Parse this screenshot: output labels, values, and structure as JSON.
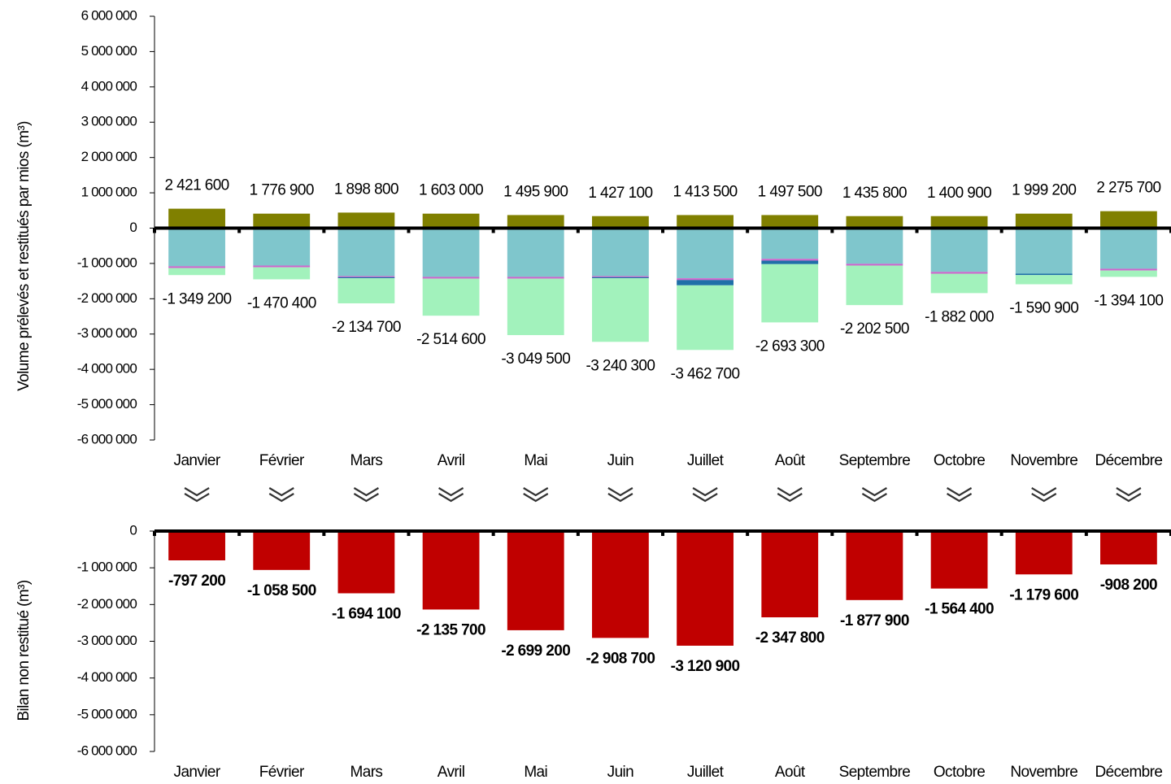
{
  "chart_data": [
    {
      "type": "stacked_bar",
      "y_label": "Volume prélevés et restitués par mios (m³)",
      "categories": [
        "Janvier",
        "Février",
        "Mars",
        "Avril",
        "Mai",
        "Juin",
        "Juillet",
        "Août",
        "Septembre",
        "Octobre",
        "Novembre",
        "Décembre"
      ],
      "series": [
        {
          "color": "#808000",
          "values": [
            550000,
            410000,
            440000,
            410000,
            370000,
            340000,
            370000,
            370000,
            340000,
            340000,
            410000,
            480000
          ]
        },
        {
          "color": "#7fc6cc",
          "values": [
            -1080000,
            -1060000,
            -1360000,
            -1380000,
            -1380000,
            -1360000,
            -1420000,
            -870000,
            -1010000,
            -1240000,
            -1290000,
            -1150000
          ]
        },
        {
          "color": "#cc66cc",
          "values": [
            -50000,
            -50000,
            -30000,
            -50000,
            -50000,
            -30000,
            -50000,
            -50000,
            -50000,
            -50000,
            0,
            -50000
          ]
        },
        {
          "color": "#1f6fa8",
          "values": [
            0,
            0,
            -30000,
            0,
            0,
            -30000,
            -150000,
            -100000,
            0,
            0,
            -40000,
            0
          ]
        },
        {
          "color": "#a2f2bc",
          "values": [
            -200000,
            -340000,
            -710000,
            -1050000,
            -1600000,
            -1800000,
            -1830000,
            -1650000,
            -1120000,
            -550000,
            -260000,
            -180000
          ]
        }
      ],
      "positive_labels": [
        "2 421 600",
        "1 776 900",
        "1 898 800",
        "1 603 000",
        "1 495 900",
        "1 427 100",
        "1 413 500",
        "1 497 500",
        "1 435 800",
        "1 400 900",
        "1 999 200",
        "2 275 700"
      ],
      "negative_labels": [
        "-1 349 200",
        "-1 470 400",
        "-2 134 700",
        "-2 514 600",
        "-3 049 500",
        "-3 240 300",
        "-3 462 700",
        "-2 693 300",
        "-2 202 500",
        "-1 882 000",
        "-1 590 900",
        "-1 394 100"
      ],
      "ylim": [
        -6000000,
        6000000
      ],
      "yticks": [
        {
          "value": -6000000,
          "label": "-6 000 000"
        },
        {
          "value": -5000000,
          "label": "-5 000 000"
        },
        {
          "value": -4000000,
          "label": "-4 000 000"
        },
        {
          "value": -3000000,
          "label": "-3 000 000"
        },
        {
          "value": -2000000,
          "label": "-2 000 000"
        },
        {
          "value": -1000000,
          "label": "-1 000 000"
        },
        0,
        {
          "value": 1000000,
          "label": "1 000 000"
        },
        {
          "value": 2000000,
          "label": "2 000 000"
        },
        {
          "value": 3000000,
          "label": "3 000 000"
        },
        {
          "value": 4000000,
          "label": "4 000 000"
        },
        {
          "value": 5000000,
          "label": "5 000 000"
        },
        {
          "value": 6000000,
          "label": "6 000 000"
        }
      ]
    },
    {
      "type": "bar",
      "y_label": "Bilan non restitué (m³)",
      "color": "#c00000",
      "categories": [
        "Janvier",
        "Février",
        "Mars",
        "Avril",
        "Mai",
        "Juin",
        "Juillet",
        "Août",
        "Septembre",
        "Octobre",
        "Novembre",
        "Décembre"
      ],
      "values": [
        -797200,
        -1058500,
        -1694100,
        -2135700,
        -2699200,
        -2908700,
        -3120900,
        -2347800,
        -1877900,
        -1564400,
        -1179600,
        -908200
      ],
      "value_labels": [
        "-797 200",
        "-1 058 500",
        "-1 694 100",
        "-2 135 700",
        "-2 699 200",
        "-2 908 700",
        "-3 120 900",
        "-2 347 800",
        "-1 877 900",
        "-1 564 400",
        "-1 179 600",
        "-908 200"
      ],
      "ylim": [
        -6000000,
        0
      ],
      "yticks": [
        {
          "value": -6000000,
          "label": "-6 000 000"
        },
        {
          "value": -5000000,
          "label": "-5 000 000"
        },
        {
          "value": -4000000,
          "label": "-4 000 000"
        },
        {
          "value": -3000000,
          "label": "-3 000 000"
        },
        {
          "value": -2000000,
          "label": "-2 000 000"
        },
        {
          "value": -1000000,
          "label": "-1 000 000"
        },
        0
      ]
    }
  ]
}
